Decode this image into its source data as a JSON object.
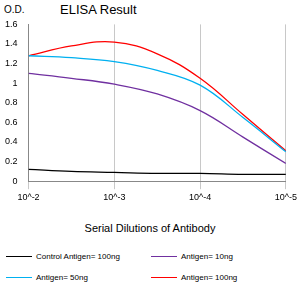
{
  "chart_data": {
    "type": "line",
    "title": "ELISA Result",
    "ylabel": "O.D.",
    "xlabel": "Serial Dilutions of Antibody",
    "log": "x",
    "grid": true,
    "legend": "bottom",
    "x": [
      0.01,
      0.00316,
      0.001,
      0.000316,
      0.0001,
      3.16e-05,
      1e-05
    ],
    "xlim": [
      0.01,
      1e-05
    ],
    "xticks": [
      {
        "value": 0.01,
        "label": "10^-2"
      },
      {
        "value": 0.001,
        "label": "10^-3"
      },
      {
        "value": 0.0001,
        "label": "10^-4"
      },
      {
        "value": 1e-05,
        "label": "10^-5"
      }
    ],
    "ylim": [
      0,
      1.6
    ],
    "yticks": [
      0,
      0.2,
      0.4,
      0.6,
      0.8,
      1,
      1.2,
      1.4,
      1.6
    ],
    "series": [
      {
        "name": "Control Antigen= 100ng",
        "color": "#000000",
        "values": [
          0.12,
          0.1,
          0.09,
          0.08,
          0.08,
          0.07,
          0.07
        ]
      },
      {
        "name": "Antigen= 10ng",
        "color": "#7030a0",
        "values": [
          1.1,
          1.05,
          0.99,
          0.89,
          0.72,
          0.45,
          0.18
        ]
      },
      {
        "name": "Antigen= 50ng",
        "color": "#00b0f0",
        "values": [
          1.28,
          1.26,
          1.22,
          1.13,
          0.98,
          0.65,
          0.3
        ]
      },
      {
        "name": "Antigen= 100ng",
        "color": "#ff0000",
        "values": [
          1.28,
          1.38,
          1.42,
          1.3,
          1.05,
          0.68,
          0.31
        ]
      }
    ]
  }
}
